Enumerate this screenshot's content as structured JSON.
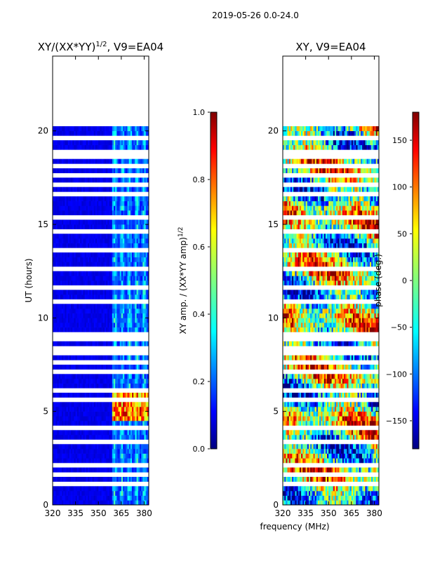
{
  "chart_data": [
    {
      "type": "heatmap",
      "suptitle": "2019-05-26 0.0-24.0",
      "title": "XY/(XX*YY)^{1/2}, V9=EA04",
      "title_base": "XY/(XX*YY)",
      "title_sup": "1/2",
      "title_rest": ", V9=EA04",
      "xlabel": "",
      "ylabel": "UT (hours)",
      "xlim": [
        320,
        383
      ],
      "ylim": [
        0,
        24
      ],
      "xticks": [
        320,
        335,
        350,
        365,
        380
      ],
      "yticks": [
        0,
        5,
        10,
        15,
        20
      ],
      "data_extent_hours": [
        0,
        20.2
      ],
      "active_band_mhz": [
        359,
        383
      ],
      "gap_rows_hours": [
        1.0,
        1.4,
        1.9,
        2.1,
        3.3,
        3.9,
        4.1,
        5.6,
        6.0,
        7.0,
        7.5,
        7.9,
        8.3,
        8.7,
        9.1,
        10.7,
        11.6,
        12.4,
        13.4,
        14.5,
        15.3,
        16.5,
        17.1,
        17.4,
        18.1,
        18.6,
        18.8,
        19.4
      ],
      "colorbar": {
        "min": 0.0,
        "max": 1.0,
        "ticks": [
          "0.0",
          "0.2",
          "0.4",
          "0.6",
          "0.8",
          "1.0"
        ],
        "tick_values": [
          0.0,
          0.2,
          0.4,
          0.6,
          0.8,
          1.0
        ],
        "label_base": "XY amp. / (XX*YY amp)",
        "label_sup": "1/2"
      }
    },
    {
      "type": "heatmap",
      "title": "XY, V9=EA04",
      "xlabel": "frequency (MHz)",
      "ylabel": "",
      "xlim": [
        320,
        383
      ],
      "ylim": [
        0,
        24
      ],
      "xticks": [
        320,
        335,
        350,
        365,
        380
      ],
      "yticks": [
        0,
        5,
        10,
        15,
        20
      ],
      "data_extent_hours": [
        0,
        20.2
      ],
      "colorbar": {
        "min": -180,
        "max": 180,
        "ticks": [
          "150",
          "100",
          "50",
          "0",
          "−50",
          "−100",
          "−150"
        ],
        "tick_values": [
          150,
          100,
          50,
          0,
          -50,
          -100,
          -150
        ],
        "label": "phase (deg.)"
      }
    }
  ],
  "colors": {
    "jet": [
      "#000080",
      "#0000ff",
      "#00ffff",
      "#ffff00",
      "#ff0000",
      "#800000"
    ]
  }
}
